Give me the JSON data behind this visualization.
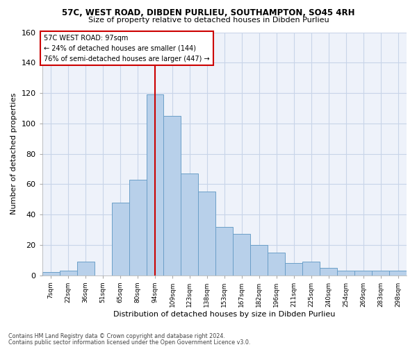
{
  "title1": "57C, WEST ROAD, DIBDEN PURLIEU, SOUTHAMPTON, SO45 4RH",
  "title2": "Size of property relative to detached houses in Dibden Purlieu",
  "xlabel": "Distribution of detached houses by size in Dibden Purlieu",
  "ylabel": "Number of detached properties",
  "bar_labels": [
    "7sqm",
    "22sqm",
    "36sqm",
    "51sqm",
    "65sqm",
    "80sqm",
    "94sqm",
    "109sqm",
    "123sqm",
    "138sqm",
    "153sqm",
    "167sqm",
    "182sqm",
    "196sqm",
    "211sqm",
    "225sqm",
    "240sqm",
    "254sqm",
    "269sqm",
    "283sqm",
    "298sqm"
  ],
  "bar_heights": [
    2,
    3,
    9,
    0,
    48,
    63,
    119,
    105,
    67,
    55,
    32,
    27,
    20,
    15,
    8,
    9,
    5,
    3,
    3,
    3,
    3
  ],
  "bar_color": "#b8d0ea",
  "bar_edge_color": "#6b9fc8",
  "vline_x": 6,
  "vline_color": "#cc0000",
  "ylim": [
    0,
    160
  ],
  "yticks": [
    0,
    20,
    40,
    60,
    80,
    100,
    120,
    140,
    160
  ],
  "property_size": "97sqm",
  "pct_smaller": 24,
  "n_smaller": 144,
  "pct_larger_semi": 76,
  "n_larger_semi": 447,
  "annotation_box_color": "#cc0000",
  "grid_color": "#c8d4e8",
  "bg_color": "#eef2fa",
  "footer1": "Contains HM Land Registry data © Crown copyright and database right 2024.",
  "footer2": "Contains public sector information licensed under the Open Government Licence v3.0."
}
